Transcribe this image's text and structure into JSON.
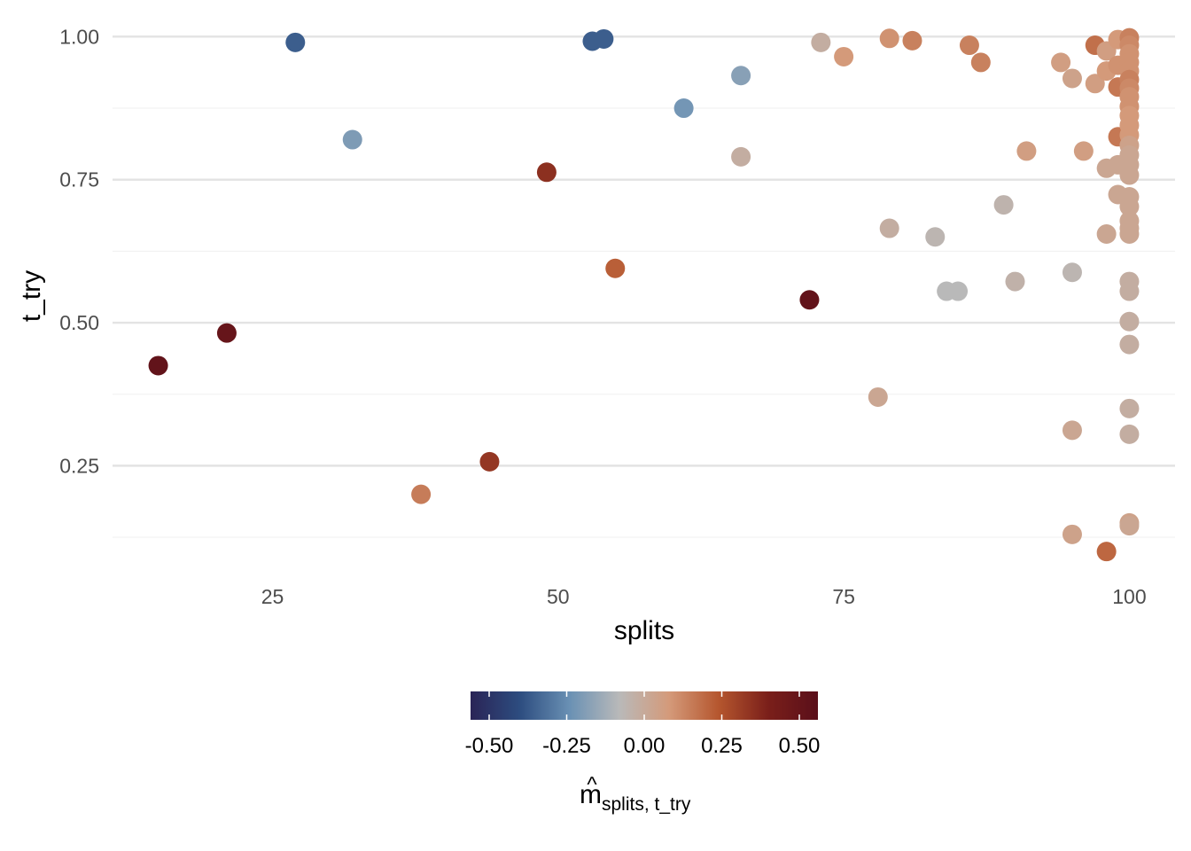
{
  "chart_data": {
    "type": "scatter",
    "xlabel": "splits",
    "ylabel": "t_try",
    "xlim": [
      11,
      104
    ],
    "ylim": [
      0.06,
      1.03
    ],
    "x_ticks": [
      25,
      50,
      75,
      100
    ],
    "x_tick_labels": [
      "25",
      "50",
      "75",
      "100"
    ],
    "y_ticks": [
      0.25,
      0.5,
      0.75,
      1.0
    ],
    "y_tick_labels": [
      "0.25",
      "0.50",
      "0.75",
      "1.00"
    ],
    "grid": true,
    "legend": {
      "position": "bottom",
      "type": "colorbar",
      "title_main": "m",
      "title_hat": "^",
      "title_sub": "splits, t_try",
      "range": [
        -0.56,
        0.56
      ],
      "ticks": [
        -0.5,
        -0.25,
        0,
        0.25,
        0.5
      ],
      "tick_labels": [
        "-0.50",
        "-0.25",
        "0.00",
        "0.25",
        "0.50"
      ],
      "color_stops": [
        "#2a2456",
        "#2d4d80",
        "#6a91b4",
        "#b9b9b9",
        "#d49a7a",
        "#b5562e",
        "#7a1f1a",
        "#5a0f1a"
      ]
    },
    "points": [
      {
        "x": 15,
        "y": 0.425,
        "v": 0.52
      },
      {
        "x": 21,
        "y": 0.482,
        "v": 0.5
      },
      {
        "x": 27,
        "y": 0.99,
        "v": -0.36
      },
      {
        "x": 32,
        "y": 0.82,
        "v": -0.2
      },
      {
        "x": 38,
        "y": 0.2,
        "v": 0.15
      },
      {
        "x": 44,
        "y": 0.257,
        "v": 0.33
      },
      {
        "x": 49,
        "y": 0.763,
        "v": 0.35
      },
      {
        "x": 53,
        "y": 0.992,
        "v": -0.36
      },
      {
        "x": 54,
        "y": 0.996,
        "v": -0.36
      },
      {
        "x": 55,
        "y": 0.595,
        "v": 0.22
      },
      {
        "x": 61,
        "y": 0.875,
        "v": -0.22
      },
      {
        "x": 66,
        "y": 0.932,
        "v": -0.18
      },
      {
        "x": 66,
        "y": 0.79,
        "v": -0.02
      },
      {
        "x": 72,
        "y": 0.54,
        "v": 0.52
      },
      {
        "x": 73,
        "y": 0.99,
        "v": -0.02
      },
      {
        "x": 75,
        "y": 0.965,
        "v": 0.08
      },
      {
        "x": 78,
        "y": 0.37,
        "v": 0.02
      },
      {
        "x": 79,
        "y": 0.997,
        "v": 0.1
      },
      {
        "x": 79,
        "y": 0.665,
        "v": -0.02
      },
      {
        "x": 81,
        "y": 0.993,
        "v": 0.14
      },
      {
        "x": 83,
        "y": 0.65,
        "v": -0.06
      },
      {
        "x": 84,
        "y": 0.555,
        "v": -0.08
      },
      {
        "x": 85,
        "y": 0.555,
        "v": -0.08
      },
      {
        "x": 86,
        "y": 0.985,
        "v": 0.14
      },
      {
        "x": 87,
        "y": 0.955,
        "v": 0.14
      },
      {
        "x": 89,
        "y": 0.706,
        "v": -0.05
      },
      {
        "x": 90,
        "y": 0.572,
        "v": -0.04
      },
      {
        "x": 91,
        "y": 0.8,
        "v": 0.06
      },
      {
        "x": 94,
        "y": 0.955,
        "v": 0.06
      },
      {
        "x": 95,
        "y": 0.927,
        "v": 0.04
      },
      {
        "x": 95,
        "y": 0.588,
        "v": -0.06
      },
      {
        "x": 95,
        "y": 0.312,
        "v": 0.02
      },
      {
        "x": 95,
        "y": 0.13,
        "v": 0.04
      },
      {
        "x": 96,
        "y": 0.8,
        "v": 0.06
      },
      {
        "x": 97,
        "y": 0.985,
        "v": 0.18
      },
      {
        "x": 97,
        "y": 0.918,
        "v": 0.06
      },
      {
        "x": 98,
        "y": 0.975,
        "v": 0.06
      },
      {
        "x": 98,
        "y": 0.94,
        "v": 0.08
      },
      {
        "x": 98,
        "y": 0.77,
        "v": 0.02
      },
      {
        "x": 98,
        "y": 0.655,
        "v": 0.02
      },
      {
        "x": 98,
        "y": 0.1,
        "v": 0.2
      },
      {
        "x": 99,
        "y": 0.995,
        "v": 0.08
      },
      {
        "x": 99,
        "y": 0.95,
        "v": 0.1
      },
      {
        "x": 99,
        "y": 0.912,
        "v": 0.16
      },
      {
        "x": 99,
        "y": 0.825,
        "v": 0.16
      },
      {
        "x": 99,
        "y": 0.776,
        "v": 0.02
      },
      {
        "x": 99,
        "y": 0.724,
        "v": 0.02
      },
      {
        "x": 100,
        "y": 0.998,
        "v": 0.14
      },
      {
        "x": 100,
        "y": 0.985,
        "v": 0.12
      },
      {
        "x": 100,
        "y": 0.97,
        "v": 0.1
      },
      {
        "x": 100,
        "y": 0.955,
        "v": 0.1
      },
      {
        "x": 100,
        "y": 0.94,
        "v": 0.1
      },
      {
        "x": 100,
        "y": 0.925,
        "v": 0.14
      },
      {
        "x": 100,
        "y": 0.91,
        "v": 0.12
      },
      {
        "x": 100,
        "y": 0.895,
        "v": 0.1
      },
      {
        "x": 100,
        "y": 0.878,
        "v": 0.1
      },
      {
        "x": 100,
        "y": 0.862,
        "v": 0.08
      },
      {
        "x": 100,
        "y": 0.845,
        "v": 0.08
      },
      {
        "x": 100,
        "y": 0.828,
        "v": 0.08
      },
      {
        "x": 100,
        "y": 0.81,
        "v": 0.04
      },
      {
        "x": 100,
        "y": 0.793,
        "v": 0.02
      },
      {
        "x": 100,
        "y": 0.776,
        "v": 0.02
      },
      {
        "x": 100,
        "y": 0.758,
        "v": 0.02
      },
      {
        "x": 100,
        "y": 0.72,
        "v": 0.02
      },
      {
        "x": 100,
        "y": 0.703,
        "v": 0.02
      },
      {
        "x": 100,
        "y": 0.678,
        "v": 0.02
      },
      {
        "x": 100,
        "y": 0.665,
        "v": 0.02
      },
      {
        "x": 100,
        "y": 0.655,
        "v": 0.02
      },
      {
        "x": 100,
        "y": 0.572,
        "v": -0.02
      },
      {
        "x": 100,
        "y": 0.555,
        "v": -0.02
      },
      {
        "x": 100,
        "y": 0.502,
        "v": -0.02
      },
      {
        "x": 100,
        "y": 0.462,
        "v": -0.02
      },
      {
        "x": 100,
        "y": 0.35,
        "v": -0.02
      },
      {
        "x": 100,
        "y": 0.305,
        "v": -0.02
      },
      {
        "x": 100,
        "y": 0.15,
        "v": 0.04
      },
      {
        "x": 100,
        "y": 0.145,
        "v": 0.02
      }
    ]
  }
}
